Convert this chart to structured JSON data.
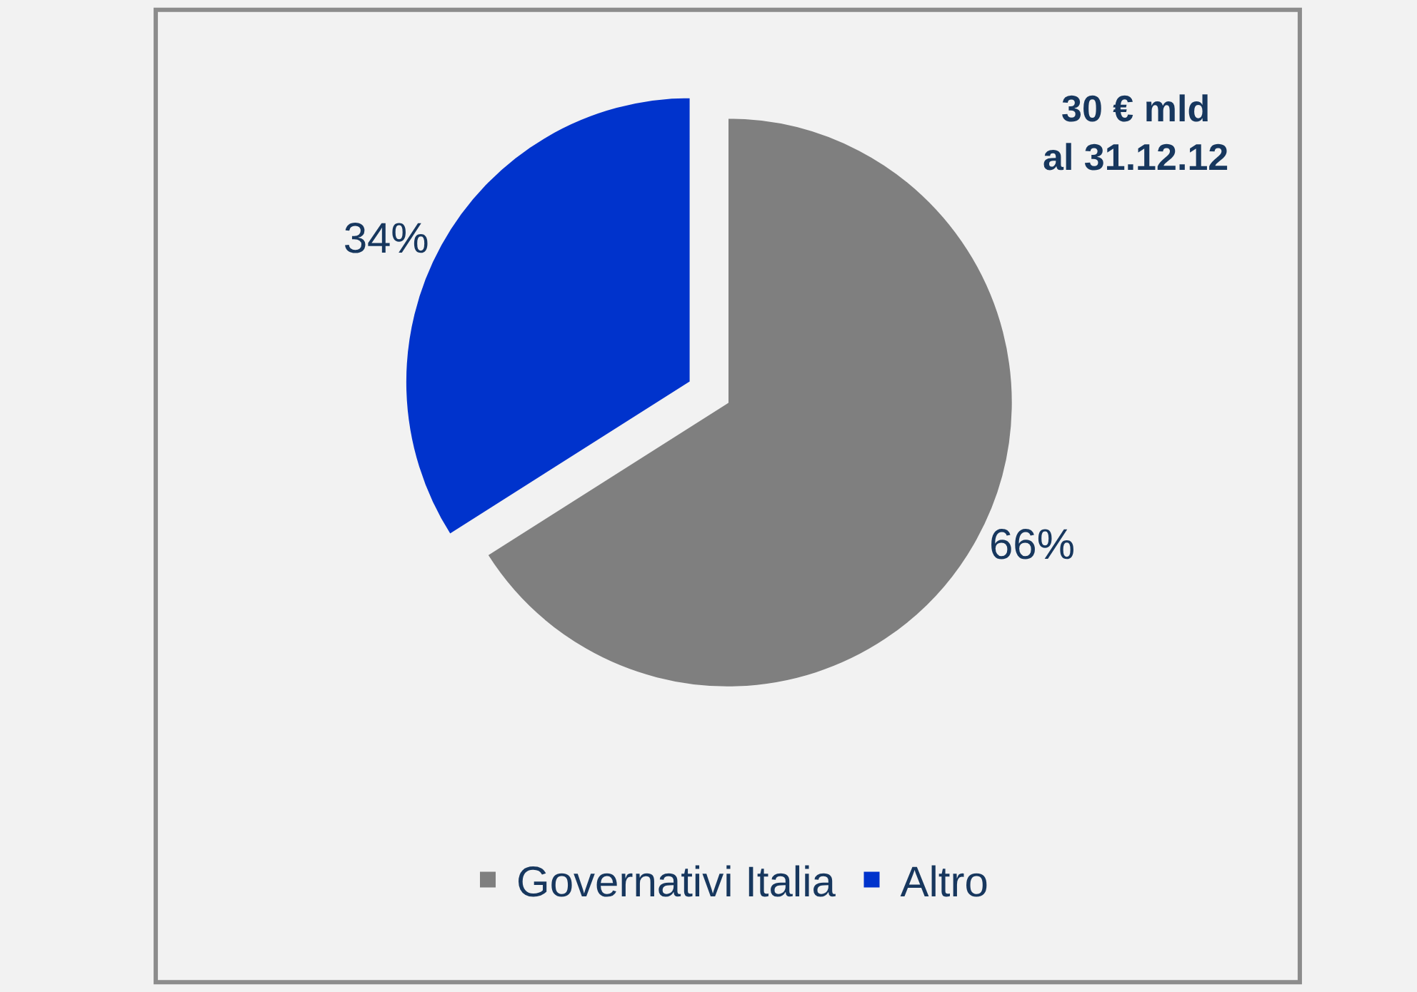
{
  "chart_data": {
    "type": "pie",
    "categories": [
      "Governativi Italia",
      "Altro"
    ],
    "values": [
      66,
      34
    ],
    "colors": [
      "#7f7f7f",
      "#0033cc"
    ],
    "value_labels": [
      "66%",
      "34%"
    ],
    "annotations": [
      "30 € mld\nal 31.12.12"
    ],
    "legend": "bottom"
  }
}
